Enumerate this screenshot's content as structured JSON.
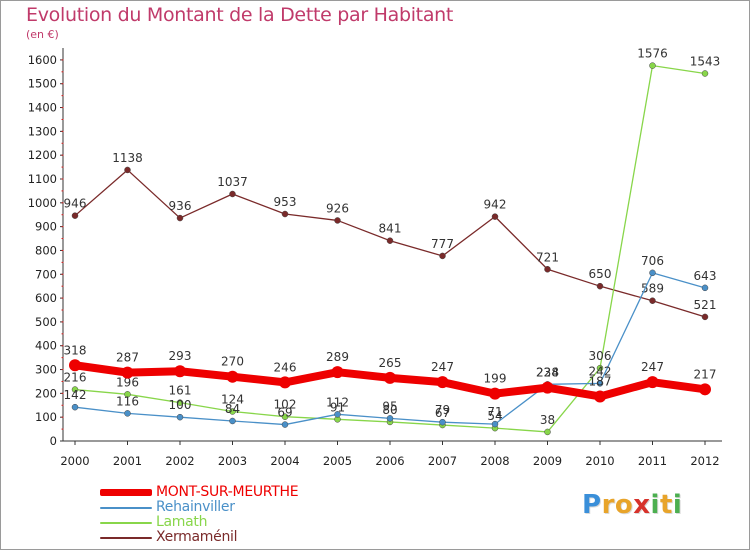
{
  "title": "Evolution du Montant de la Dette par Habitant",
  "unit_label": "(en €)",
  "logo": {
    "letters": [
      {
        "ch": "P",
        "color": "#3a8fd9"
      },
      {
        "ch": "r",
        "color": "#e8a42a"
      },
      {
        "ch": "o",
        "color": "#e8a42a"
      },
      {
        "ch": "x",
        "color": "#d7322b"
      },
      {
        "ch": "i",
        "color": "#4caf50"
      },
      {
        "ch": "t",
        "color": "#e8a42a"
      },
      {
        "ch": "i",
        "color": "#4caf50"
      }
    ]
  },
  "chart_data": {
    "type": "line",
    "title": "Evolution du Montant de la Dette par Habitant",
    "ylabel": "(en €)",
    "xlabel": "",
    "x": [
      "2000",
      "2001",
      "2002",
      "2003",
      "2004",
      "2005",
      "2006",
      "2007",
      "2008",
      "2009",
      "2010",
      "2011",
      "2012"
    ],
    "ylim": [
      0,
      1650
    ],
    "yticks": [
      0,
      100,
      200,
      300,
      400,
      500,
      600,
      700,
      800,
      900,
      1000,
      1100,
      1200,
      1300,
      1400,
      1500,
      1600
    ],
    "grid": false,
    "legend": "bottom-left",
    "series": [
      {
        "name": "Xermaménil",
        "color": "#7a2a2a",
        "values": [
          946,
          1138,
          936,
          1037,
          953,
          926,
          841,
          777,
          942,
          721,
          650,
          589,
          521
        ]
      },
      {
        "name": "Lamath",
        "color": "#88d64a",
        "values": [
          216,
          196,
          161,
          124,
          102,
          91,
          80,
          67,
          54,
          38,
          306,
          1576,
          1543
        ]
      },
      {
        "name": "Rehainviller",
        "color": "#4a90c8",
        "values": [
          142,
          116,
          100,
          84,
          69,
          112,
          95,
          79,
          71,
          238,
          242,
          706,
          643
        ]
      },
      {
        "name": "MONT-SUR-MEURTHE",
        "color": "#ee0000",
        "values": [
          318,
          287,
          293,
          270,
          246,
          289,
          265,
          247,
          199,
          224,
          187,
          247,
          217
        ]
      }
    ]
  }
}
